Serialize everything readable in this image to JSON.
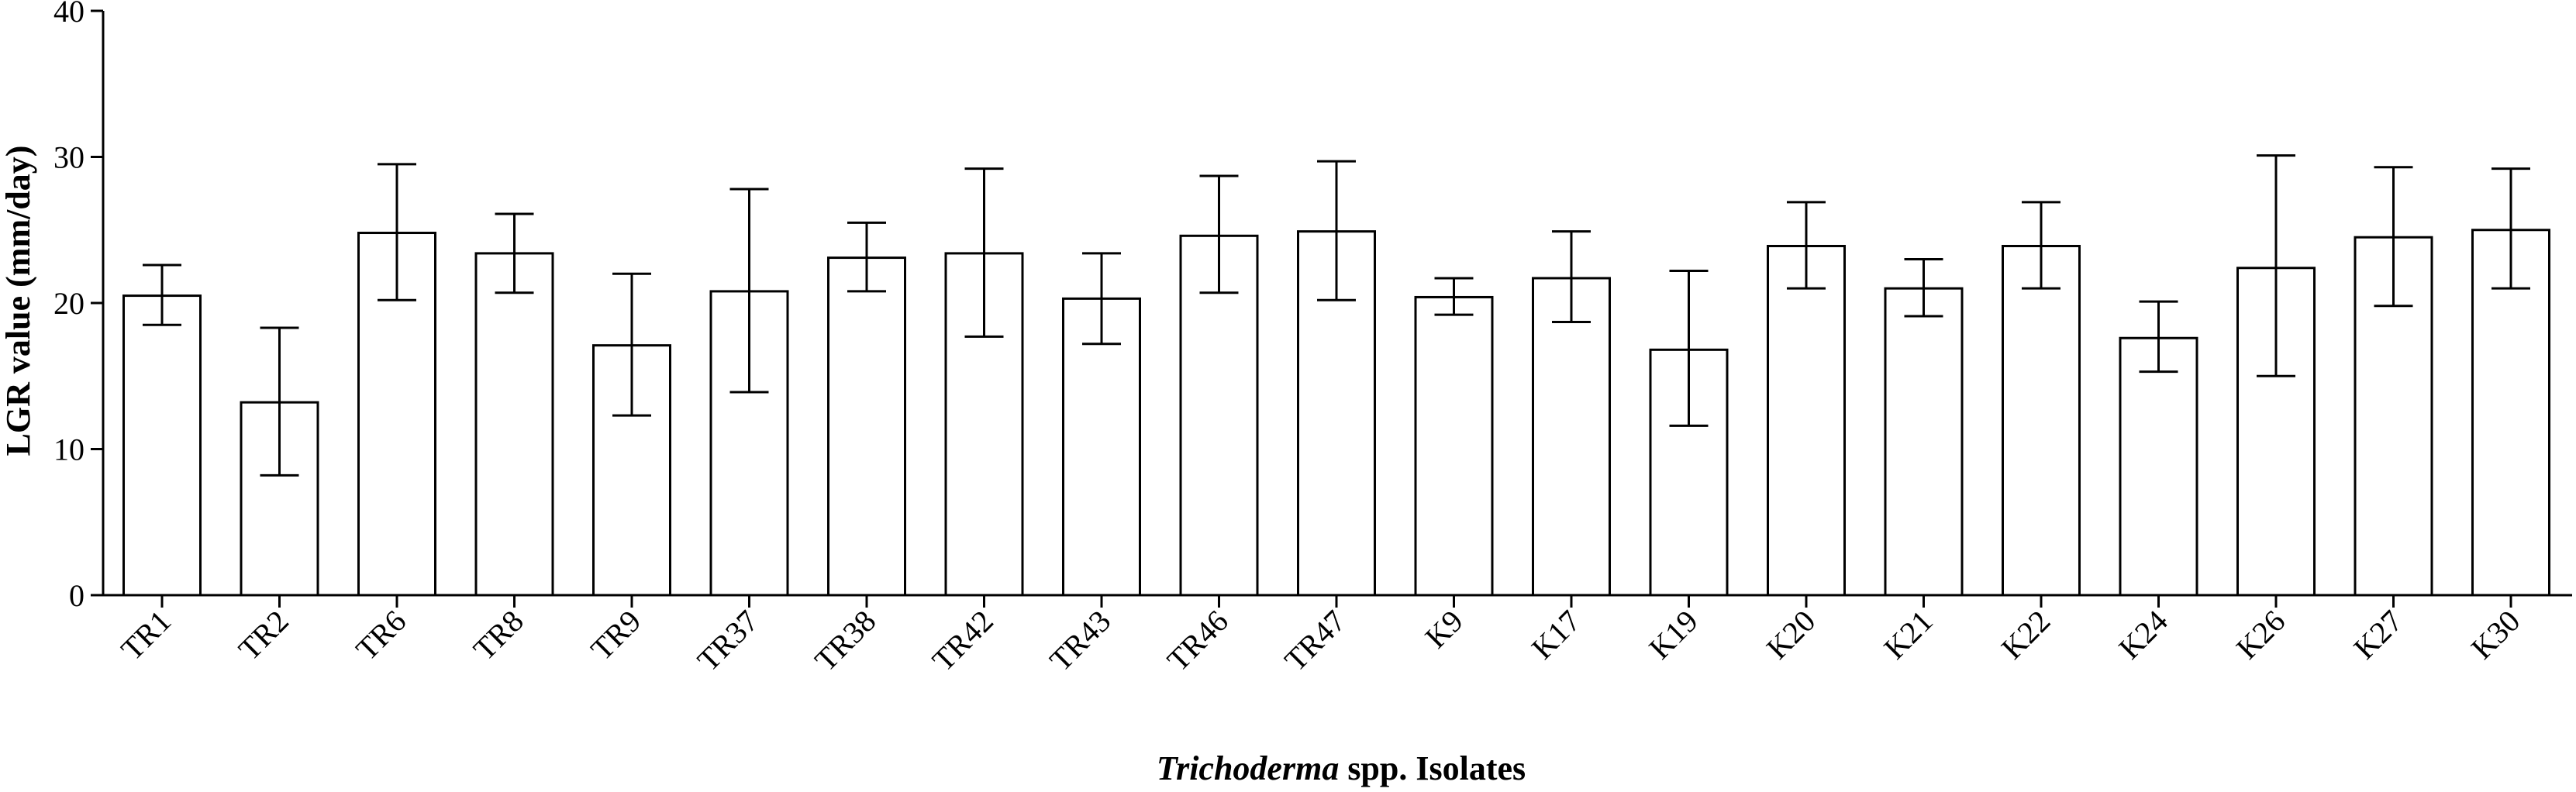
{
  "chart_data": {
    "type": "bar",
    "xlabel_italic": "Trichoderma",
    "xlabel_rest": " spp. Isolates",
    "ylabel": "LGR value (mm/day)",
    "ylim": [
      0,
      40
    ],
    "yticks": [
      0,
      10,
      20,
      30,
      40
    ],
    "grid": false,
    "categories": [
      "TR1",
      "TR2",
      "TR6",
      "TR8",
      "TR9",
      "TR37",
      "TR38",
      "TR42",
      "TR43",
      "TR46",
      "TR47",
      "K9",
      "K17",
      "K19",
      "K20",
      "K21",
      "K22",
      "K24",
      "K26",
      "K27",
      "K30"
    ],
    "values": [
      20.5,
      13.2,
      24.8,
      23.4,
      17.1,
      20.8,
      23.1,
      23.4,
      20.3,
      24.6,
      24.9,
      20.4,
      21.7,
      16.8,
      23.9,
      21.0,
      23.9,
      17.6,
      22.4,
      24.5,
      25.0
    ],
    "error_low": [
      18.5,
      8.2,
      20.2,
      20.7,
      12.3,
      13.9,
      20.8,
      17.7,
      17.2,
      20.7,
      20.2,
      19.2,
      18.7,
      11.6,
      21.0,
      19.1,
      21.0,
      15.3,
      15.0,
      19.8,
      21.0
    ],
    "error_high": [
      22.6,
      18.3,
      29.5,
      26.1,
      22.0,
      27.8,
      25.5,
      29.2,
      23.4,
      28.7,
      29.7,
      21.7,
      24.9,
      22.2,
      26.9,
      23.0,
      26.9,
      20.1,
      30.1,
      29.3,
      29.2
    ],
    "colors": {
      "bar_fill": "#ffffff",
      "stroke": "#000000"
    }
  }
}
